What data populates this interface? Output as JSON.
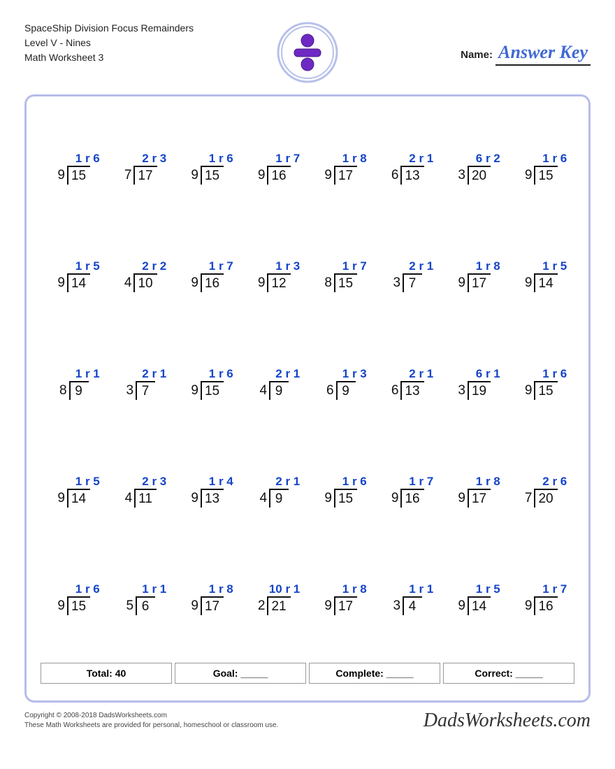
{
  "header": {
    "line1": "SpaceShip Division Focus Remainders",
    "line2": "Level V - Nines",
    "line3": "Math Worksheet 3",
    "name_label": "Name:",
    "answer_key": "Answer Key"
  },
  "colors": {
    "answer": "#1544c9",
    "border": "#b6bdea",
    "badge_inner": "#6e29c4",
    "badge_ring": "#b8c0ea"
  },
  "problems": [
    {
      "divisor": 9,
      "dividend": 15,
      "q": 1,
      "r": 6
    },
    {
      "divisor": 7,
      "dividend": 17,
      "q": 2,
      "r": 3
    },
    {
      "divisor": 9,
      "dividend": 15,
      "q": 1,
      "r": 6
    },
    {
      "divisor": 9,
      "dividend": 16,
      "q": 1,
      "r": 7
    },
    {
      "divisor": 9,
      "dividend": 17,
      "q": 1,
      "r": 8
    },
    {
      "divisor": 6,
      "dividend": 13,
      "q": 2,
      "r": 1
    },
    {
      "divisor": 3,
      "dividend": 20,
      "q": 6,
      "r": 2
    },
    {
      "divisor": 9,
      "dividend": 15,
      "q": 1,
      "r": 6
    },
    {
      "divisor": 9,
      "dividend": 14,
      "q": 1,
      "r": 5
    },
    {
      "divisor": 4,
      "dividend": 10,
      "q": 2,
      "r": 2
    },
    {
      "divisor": 9,
      "dividend": 16,
      "q": 1,
      "r": 7
    },
    {
      "divisor": 9,
      "dividend": 12,
      "q": 1,
      "r": 3
    },
    {
      "divisor": 8,
      "dividend": 15,
      "q": 1,
      "r": 7
    },
    {
      "divisor": 3,
      "dividend": 7,
      "q": 2,
      "r": 1
    },
    {
      "divisor": 9,
      "dividend": 17,
      "q": 1,
      "r": 8
    },
    {
      "divisor": 9,
      "dividend": 14,
      "q": 1,
      "r": 5
    },
    {
      "divisor": 8,
      "dividend": 9,
      "q": 1,
      "r": 1
    },
    {
      "divisor": 3,
      "dividend": 7,
      "q": 2,
      "r": 1
    },
    {
      "divisor": 9,
      "dividend": 15,
      "q": 1,
      "r": 6
    },
    {
      "divisor": 4,
      "dividend": 9,
      "q": 2,
      "r": 1
    },
    {
      "divisor": 6,
      "dividend": 9,
      "q": 1,
      "r": 3
    },
    {
      "divisor": 6,
      "dividend": 13,
      "q": 2,
      "r": 1
    },
    {
      "divisor": 3,
      "dividend": 19,
      "q": 6,
      "r": 1
    },
    {
      "divisor": 9,
      "dividend": 15,
      "q": 1,
      "r": 6
    },
    {
      "divisor": 9,
      "dividend": 14,
      "q": 1,
      "r": 5
    },
    {
      "divisor": 4,
      "dividend": 11,
      "q": 2,
      "r": 3
    },
    {
      "divisor": 9,
      "dividend": 13,
      "q": 1,
      "r": 4
    },
    {
      "divisor": 4,
      "dividend": 9,
      "q": 2,
      "r": 1
    },
    {
      "divisor": 9,
      "dividend": 15,
      "q": 1,
      "r": 6
    },
    {
      "divisor": 9,
      "dividend": 16,
      "q": 1,
      "r": 7
    },
    {
      "divisor": 9,
      "dividend": 17,
      "q": 1,
      "r": 8
    },
    {
      "divisor": 7,
      "dividend": 20,
      "q": 2,
      "r": 6
    },
    {
      "divisor": 9,
      "dividend": 15,
      "q": 1,
      "r": 6
    },
    {
      "divisor": 5,
      "dividend": 6,
      "q": 1,
      "r": 1
    },
    {
      "divisor": 9,
      "dividend": 17,
      "q": 1,
      "r": 8
    },
    {
      "divisor": 2,
      "dividend": 21,
      "q": 10,
      "r": 1
    },
    {
      "divisor": 9,
      "dividend": 17,
      "q": 1,
      "r": 8
    },
    {
      "divisor": 3,
      "dividend": 4,
      "q": 1,
      "r": 1
    },
    {
      "divisor": 9,
      "dividend": 14,
      "q": 1,
      "r": 5
    },
    {
      "divisor": 9,
      "dividend": 16,
      "q": 1,
      "r": 7
    }
  ],
  "stats": {
    "total_label": "Total: 40",
    "goal_label": "Goal: _____",
    "complete_label": "Complete: _____",
    "correct_label": "Correct: _____"
  },
  "footer": {
    "copy1": "Copyright © 2008-2018 DadsWorksheets.com",
    "copy2": "These Math Worksheets are provided for personal, homeschool or classroom use.",
    "brand": "DadsWorksheets.com"
  }
}
